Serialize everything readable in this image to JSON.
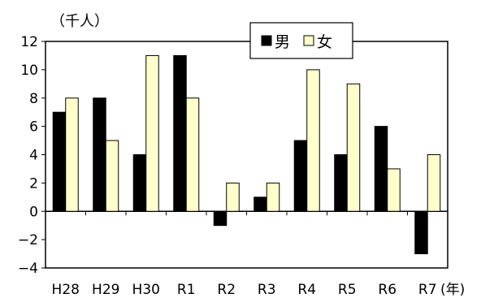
{
  "chart_data": {
    "type": "bar",
    "unit_label": "（千人）",
    "x_suffix": "(年)",
    "categories": [
      "H28",
      "H29",
      "H30",
      "R1",
      "R2",
      "R3",
      "R4",
      "R5",
      "R6",
      "R7"
    ],
    "series": [
      {
        "name": "男",
        "values": [
          7,
          8,
          4,
          11,
          -1,
          1,
          5,
          4,
          6,
          -3
        ],
        "color": "#000000"
      },
      {
        "name": "女",
        "values": [
          8,
          5,
          11,
          8,
          2,
          2,
          10,
          9,
          3,
          4
        ],
        "color": "#FFFFCC"
      }
    ],
    "ylim": [
      -4,
      12
    ],
    "yticks": [
      -4,
      -2,
      0,
      2,
      4,
      6,
      8,
      10,
      12
    ],
    "legend_position": "top-right",
    "grid": false
  }
}
